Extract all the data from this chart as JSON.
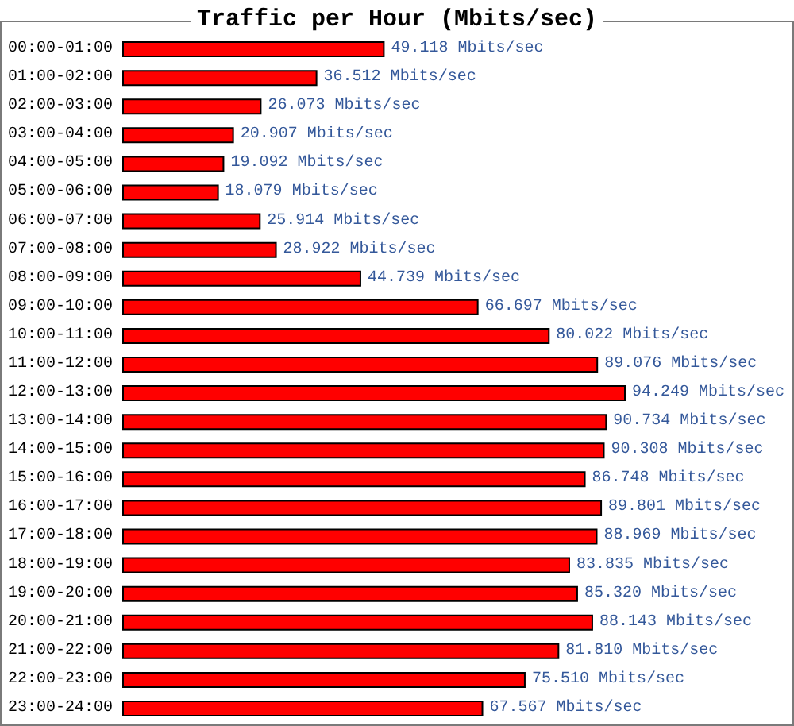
{
  "chart_data": {
    "type": "bar",
    "orientation": "horizontal",
    "title": "Traffic per Hour (Mbits/sec)",
    "categories": [
      "00:00-01:00",
      "01:00-02:00",
      "02:00-03:00",
      "03:00-04:00",
      "04:00-05:00",
      "05:00-06:00",
      "06:00-07:00",
      "07:00-08:00",
      "08:00-09:00",
      "09:00-10:00",
      "10:00-11:00",
      "11:00-12:00",
      "12:00-13:00",
      "13:00-14:00",
      "14:00-15:00",
      "15:00-16:00",
      "16:00-17:00",
      "17:00-18:00",
      "18:00-19:00",
      "19:00-20:00",
      "20:00-21:00",
      "21:00-22:00",
      "22:00-23:00",
      "23:00-24:00"
    ],
    "values": [
      49.118,
      36.512,
      26.073,
      20.907,
      19.092,
      18.079,
      25.914,
      28.922,
      44.739,
      66.697,
      80.022,
      89.076,
      94.249,
      90.734,
      90.308,
      86.748,
      89.801,
      88.969,
      83.835,
      85.32,
      88.143,
      81.81,
      75.51,
      67.567
    ],
    "value_labels": [
      "49.118 Mbits/sec",
      "36.512 Mbits/sec",
      "26.073 Mbits/sec",
      "20.907 Mbits/sec",
      "19.092 Mbits/sec",
      "18.079 Mbits/sec",
      "25.914 Mbits/sec",
      "28.922 Mbits/sec",
      "44.739 Mbits/sec",
      "66.697 Mbits/sec",
      "80.022 Mbits/sec",
      "89.076 Mbits/sec",
      "94.249 Mbits/sec",
      "90.734 Mbits/sec",
      "90.308 Mbits/sec",
      "86.748 Mbits/sec",
      "89.801 Mbits/sec",
      "88.969 Mbits/sec",
      "83.835 Mbits/sec",
      "85.320 Mbits/sec",
      "88.143 Mbits/sec",
      "81.810 Mbits/sec",
      "75.510 Mbits/sec",
      "67.567 Mbits/sec"
    ],
    "color": "#ff0000",
    "tick_labels": "y"
  }
}
